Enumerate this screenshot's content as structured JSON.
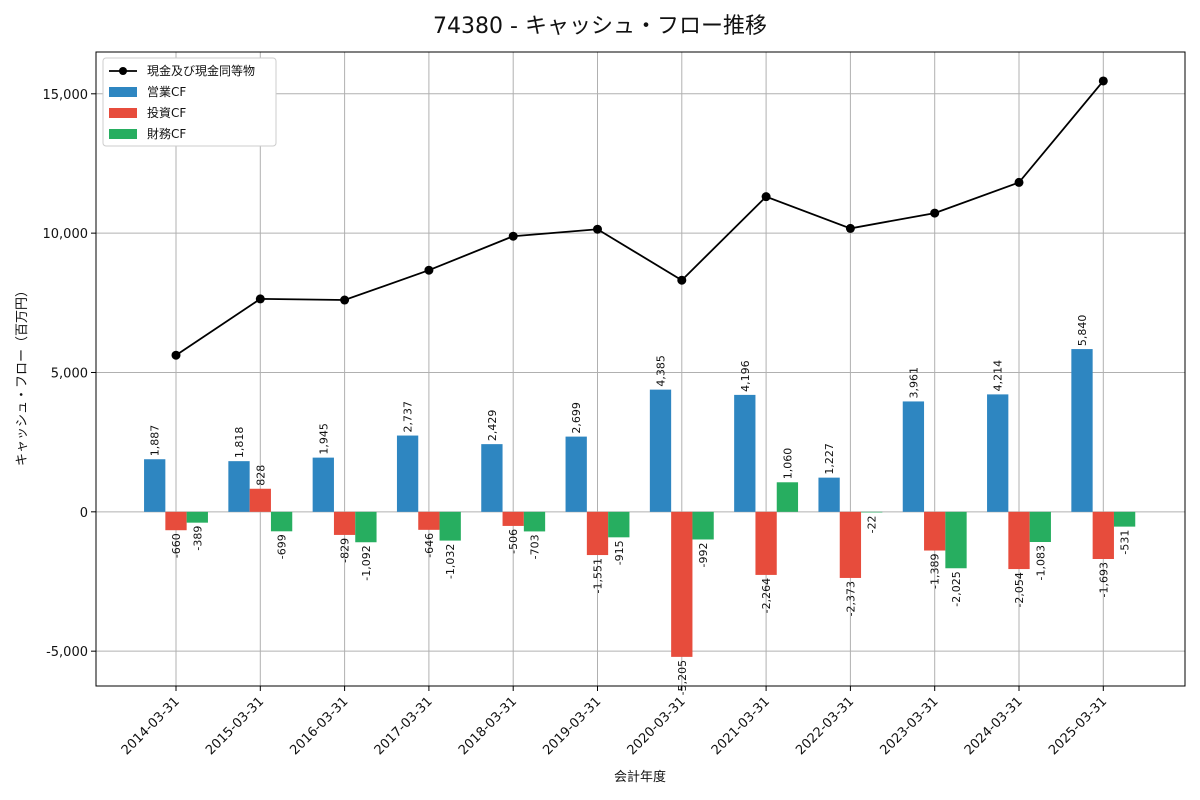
{
  "chart_data": {
    "type": "bar",
    "title": "74380 - キャッシュ・フロー推移",
    "xlabel": "会計年度",
    "ylabel": "キャッシュ・フロー（百万円）",
    "ylim": [
      -6250,
      16500
    ],
    "yticks": [
      -5000,
      0,
      5000,
      10000,
      15000
    ],
    "ytick_labels": [
      "-5,000",
      "0",
      "5,000",
      "10,000",
      "15,000"
    ],
    "grid": true,
    "legend_position": "top-left",
    "categories": [
      "2014-03-31",
      "2015-03-31",
      "2016-03-31",
      "2017-03-31",
      "2018-03-31",
      "2019-03-31",
      "2020-03-31",
      "2021-03-31",
      "2022-03-31",
      "2023-03-31",
      "2024-03-31",
      "2025-03-31"
    ],
    "series": [
      {
        "name": "営業CF",
        "kind": "bar",
        "color": "#2e86c1",
        "values": [
          1887,
          1818,
          1945,
          2737,
          2429,
          2699,
          4385,
          4196,
          1227,
          3961,
          4214,
          5840
        ],
        "labels": [
          "1,887",
          "1,818",
          "1,945",
          "2,737",
          "2,429",
          "2,699",
          "4,385",
          "4,196",
          "1,227",
          "3,961",
          "4,214",
          "5,840"
        ]
      },
      {
        "name": "投資CF",
        "kind": "bar",
        "color": "#e74c3c",
        "values": [
          -660,
          828,
          -829,
          -646,
          -506,
          -1551,
          -5205,
          -2264,
          -2373,
          -1389,
          -2054,
          -1693
        ],
        "labels": [
          "-660",
          "828",
          "-829",
          "-646",
          "-506",
          "-1,551",
          "-5,205",
          "-2,264",
          "-2,373",
          "-1,389",
          "-2,054",
          "-1,693"
        ]
      },
      {
        "name": "財務CF",
        "kind": "bar",
        "color": "#27ae60",
        "values": [
          -389,
          -699,
          -1092,
          -1032,
          -703,
          -915,
          -992,
          1060,
          -22,
          -2025,
          -1083,
          -531
        ],
        "labels": [
          "-389",
          "-699",
          "-1,092",
          "-1,032",
          "-703",
          "-915",
          "-992",
          "1,060",
          "-22",
          "-2,025",
          "-1,083",
          "-531"
        ]
      },
      {
        "name": "現金及び現金同等物",
        "kind": "line",
        "color": "#000000",
        "values": [
          5620,
          7640,
          7600,
          8670,
          9890,
          10140,
          8310,
          11310,
          10170,
          10720,
          11820,
          15460
        ]
      }
    ]
  }
}
